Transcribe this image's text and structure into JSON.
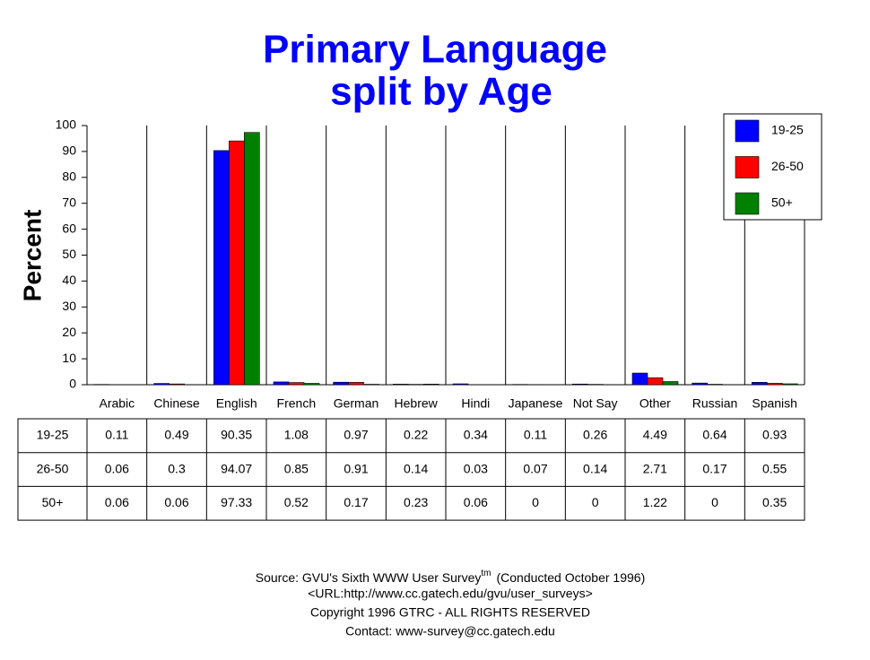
{
  "chart_data": {
    "type": "bar",
    "title": "Primary Language",
    "subtitle": "split by Age",
    "y_label": "Percent",
    "categories": [
      "Arabic",
      "Chinese",
      "English",
      "French",
      "German",
      "Hebrew",
      "Hindi",
      "Japanese",
      "Not Say",
      "Other",
      "Russian",
      "Spanish"
    ],
    "series": [
      {
        "name": "19-25",
        "color": "#0000ff",
        "values": [
          0.11,
          0.49,
          90.35,
          1.08,
          0.97,
          0.22,
          0.34,
          0.11,
          0.26,
          4.49,
          0.64,
          0.93
        ]
      },
      {
        "name": "26-50",
        "color": "#ff0000",
        "values": [
          0.06,
          0.3,
          94.07,
          0.85,
          0.91,
          0.14,
          0.03,
          0.07,
          0.14,
          2.71,
          0.17,
          0.55
        ]
      },
      {
        "name": "50+",
        "color": "#008000",
        "values": [
          0.06,
          0.06,
          97.33,
          0.52,
          0.17,
          0.23,
          0.06,
          0,
          0,
          1.22,
          0,
          0.35
        ]
      }
    ],
    "ylim": [
      0,
      100
    ],
    "yticks": [
      0,
      10,
      20,
      30,
      40,
      50,
      60,
      70,
      80,
      90,
      100
    ],
    "grid": true,
    "legend": "top-right",
    "source": "Source: GVU's Sixth WWW User Survey",
    "source_mark": "tm",
    "source_note": "(Conducted October 1996)",
    "footer": [
      "<URL:http://www.cc.gatech.edu/gvu/user_surveys>",
      "Copyright 1996 GTRC -  ALL RIGHTS RESERVED",
      "Contact: www-survey@cc.gatech.edu"
    ]
  }
}
